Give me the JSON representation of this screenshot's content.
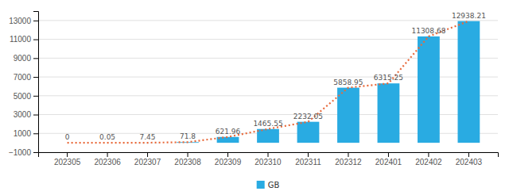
{
  "chart_data": {
    "type": "bar",
    "categories": [
      "202305",
      "202306",
      "202307",
      "202308",
      "202309",
      "202310",
      "202311",
      "202312",
      "202401",
      "202402",
      "202403"
    ],
    "series": [
      {
        "name": "GB",
        "type": "bar",
        "color": "#29ABE2",
        "data_labels": true,
        "values": [
          0,
          0.05,
          7.45,
          71.8,
          621.96,
          1465.55,
          2232.05,
          5858.95,
          6315.25,
          11308.68,
          12938.21
        ]
      },
      {
        "type": "line",
        "color": "#E8693A",
        "line_style": "dotted",
        "values": [
          0,
          0.05,
          7.45,
          71.8,
          621.96,
          1465.55,
          2232.05,
          5858.95,
          6315.25,
          11308.68,
          12938.21
        ]
      }
    ],
    "ylim": [
      -1000,
      14000
    ],
    "yticks": [
      {
        "value": -1000,
        "label": "−1000"
      },
      1000,
      3000,
      5000,
      7000,
      9000,
      11000,
      13000
    ],
    "grid": true,
    "legend": "bottom"
  }
}
